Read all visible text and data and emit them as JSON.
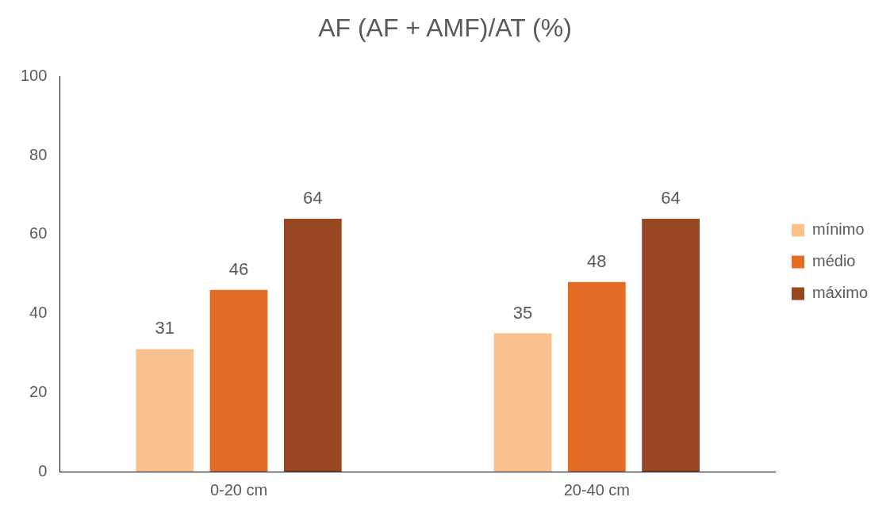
{
  "chart_data": {
    "type": "bar",
    "title": "AF (AF + AMF)/AT (%)",
    "categories": [
      "0-20 cm",
      "20-40 cm"
    ],
    "series": [
      {
        "name": "mínimo",
        "color": "#f9c190",
        "values": [
          31,
          35
        ]
      },
      {
        "name": "médio",
        "color": "#e46c24",
        "values": [
          46,
          48
        ]
      },
      {
        "name": "máximo",
        "color": "#974621",
        "values": [
          64,
          64
        ]
      }
    ],
    "ylim": [
      0,
      100
    ],
    "yticks": [
      0,
      20,
      40,
      60,
      80,
      100
    ],
    "grid": false,
    "legend": "right",
    "data_labels": true
  }
}
